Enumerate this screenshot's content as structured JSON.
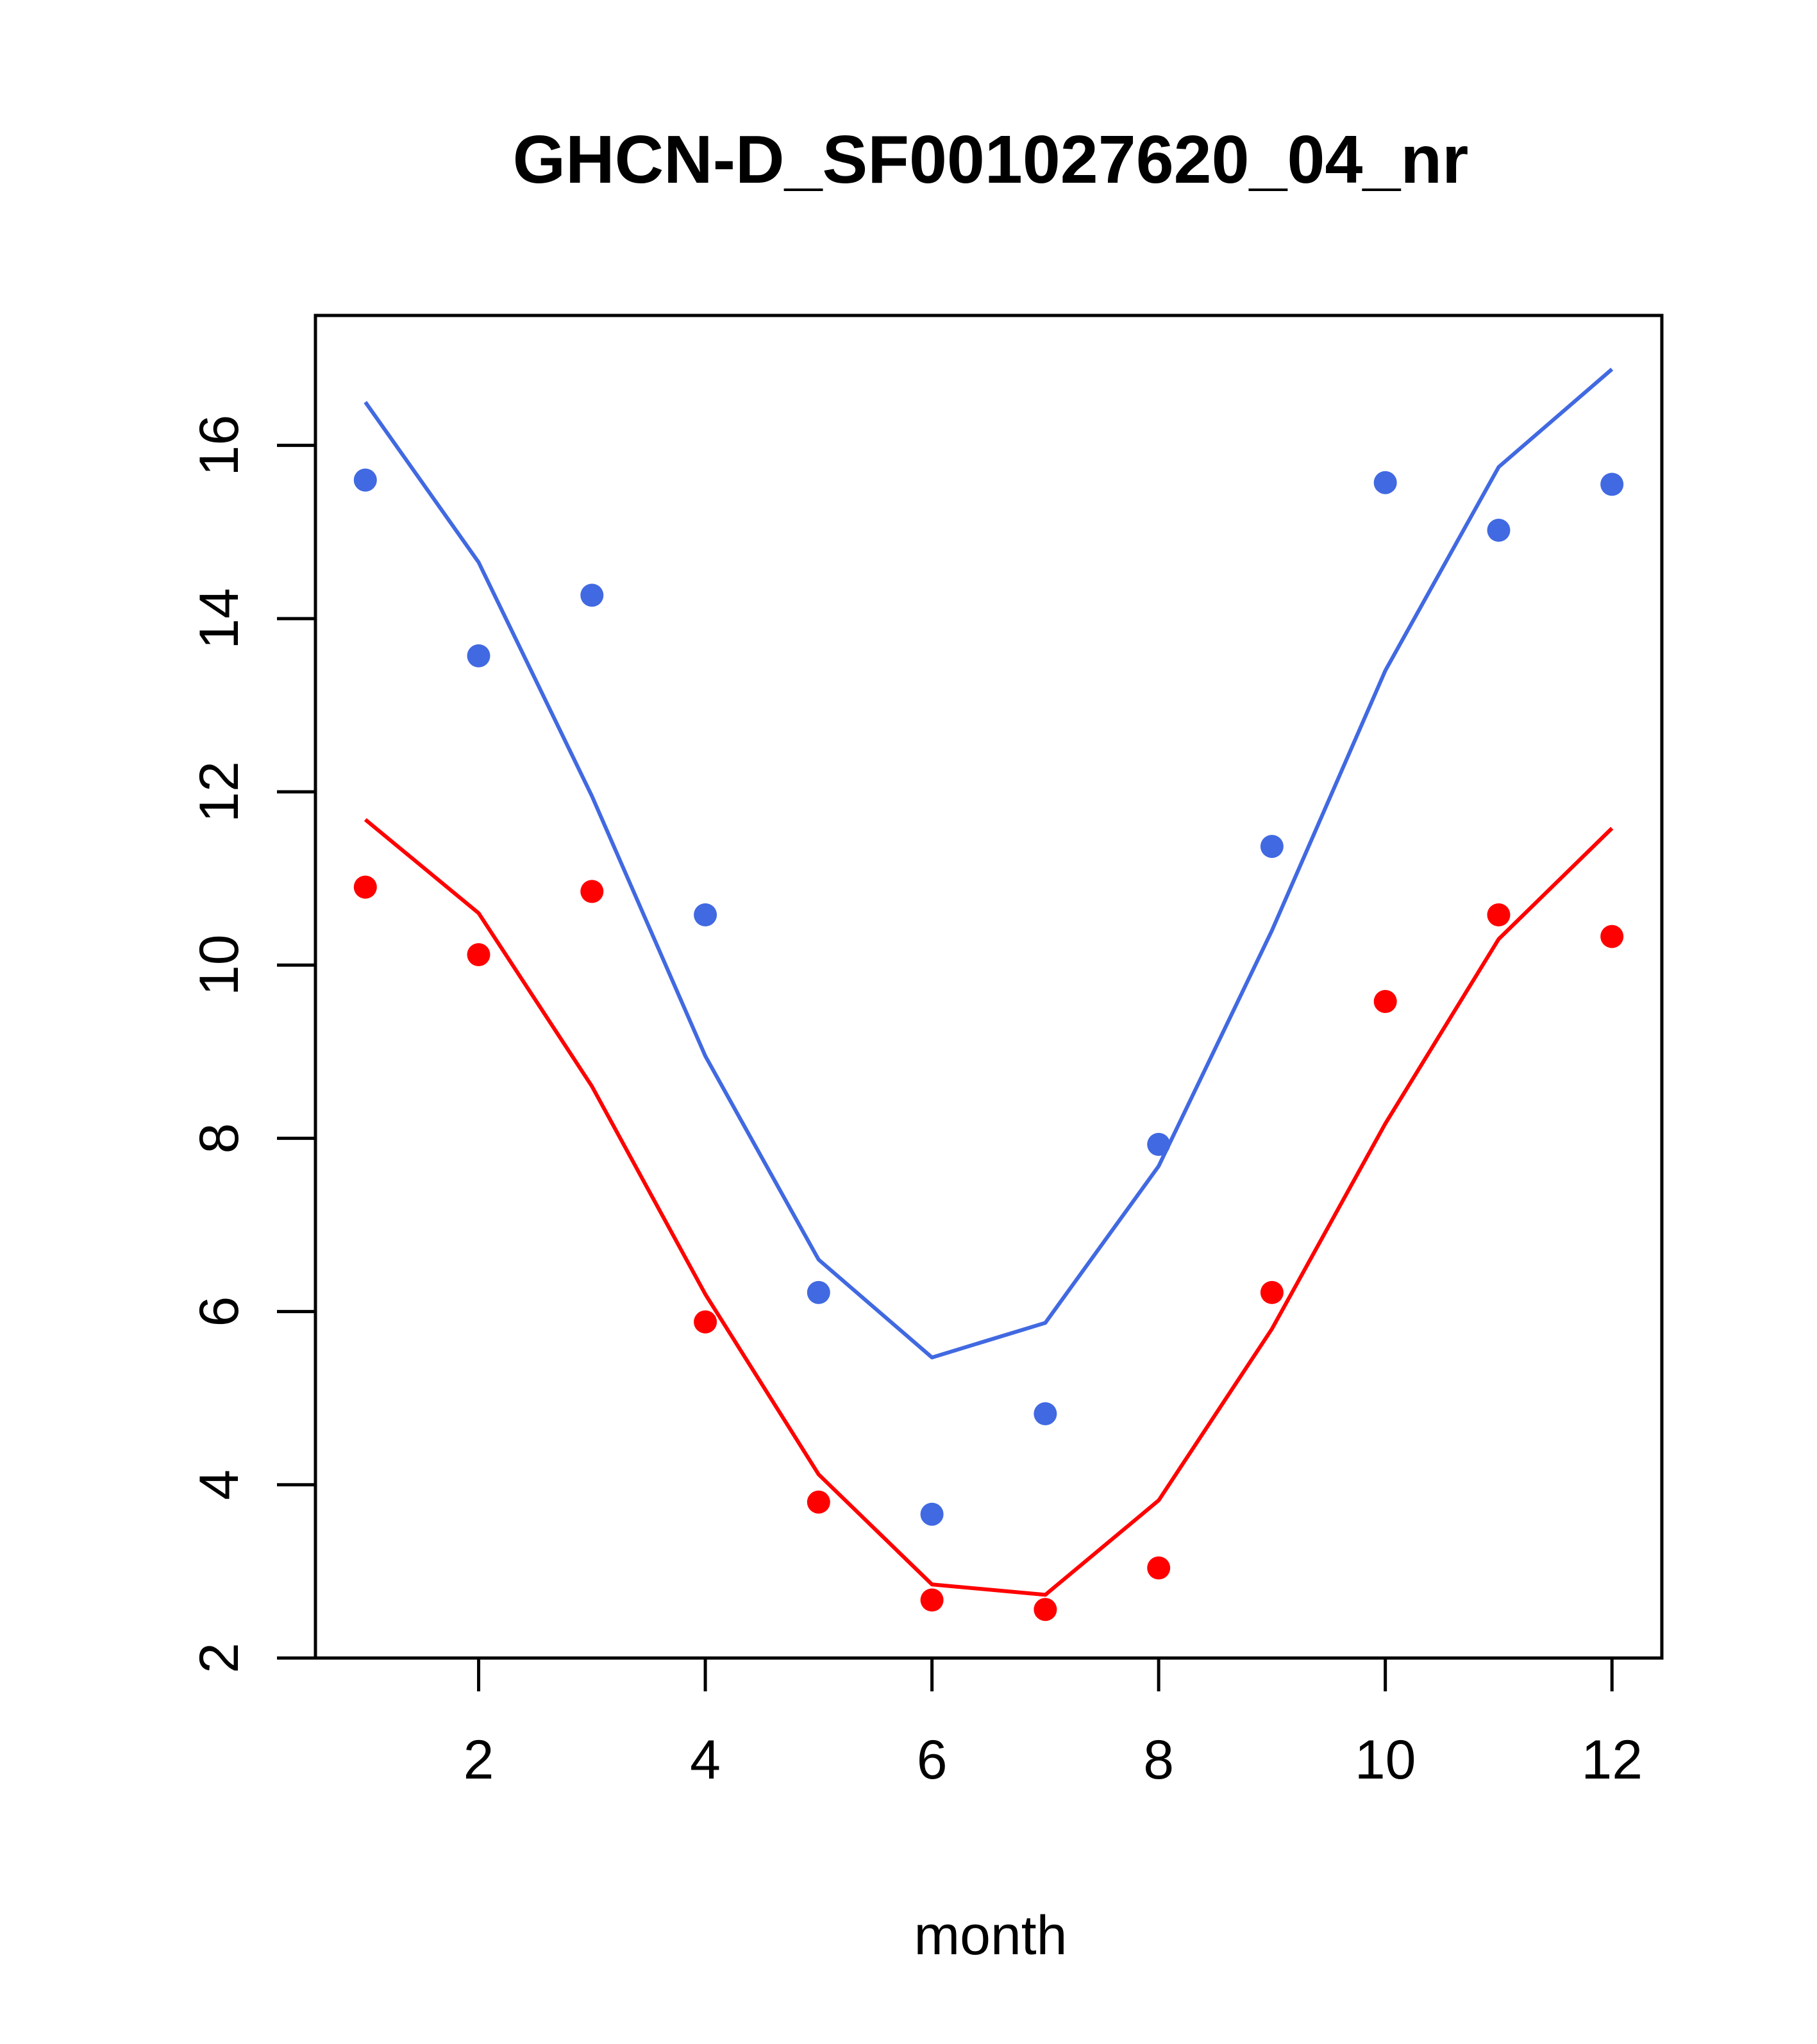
{
  "chart_data": {
    "type": "line",
    "title": "GHCN-D_SF001027620_04_nr",
    "xlabel": "month",
    "ylabel": "",
    "xlim": [
      0.56,
      12.44
    ],
    "ylim": [
      2,
      17.5
    ],
    "xticks": [
      2,
      4,
      6,
      8,
      10,
      12
    ],
    "yticks": [
      2,
      4,
      6,
      8,
      10,
      12,
      14,
      16
    ],
    "grid": false,
    "legend": "none",
    "x": [
      1,
      2,
      3,
      4,
      5,
      6,
      7,
      8,
      9,
      10,
      11,
      12
    ],
    "series": [
      {
        "color": "#4169E1",
        "line": [
          16.5,
          14.65,
          11.95,
          8.95,
          6.6,
          5.47,
          5.87,
          7.68,
          10.4,
          13.4,
          15.75,
          16.88
        ],
        "points": [
          15.6,
          13.57,
          14.27,
          10.58,
          6.22,
          3.66,
          4.82,
          7.93,
          11.37,
          15.57,
          15.02,
          15.55
        ]
      },
      {
        "color": "#FF0000",
        "line": [
          11.68,
          10.6,
          8.6,
          6.2,
          4.12,
          2.85,
          2.73,
          3.82,
          5.8,
          8.17,
          10.3,
          11.58
        ],
        "points": [
          10.9,
          10.12,
          10.85,
          5.88,
          3.8,
          2.67,
          2.56,
          3.04,
          6.22,
          9.58,
          10.58,
          10.33
        ]
      }
    ]
  }
}
